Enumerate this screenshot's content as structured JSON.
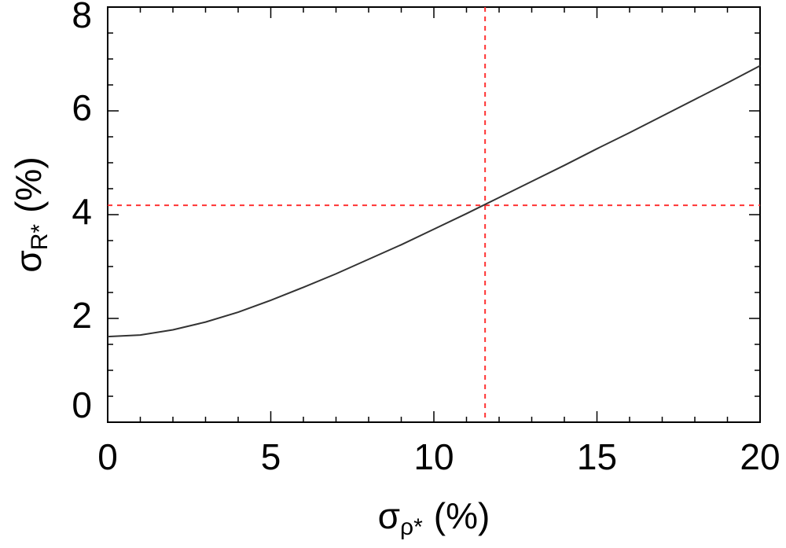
{
  "chart_data": {
    "type": "line",
    "x_label": {
      "symbol": "σ",
      "subscript": "ρ*",
      "unit": "(%)"
    },
    "y_label": {
      "symbol": "σ",
      "subscript": "R*",
      "unit": "(%)"
    },
    "x": [
      0,
      1,
      2,
      3,
      4,
      5,
      6,
      7,
      8,
      9,
      10,
      11,
      12,
      13,
      14,
      15,
      16,
      17,
      18,
      19,
      20
    ],
    "series": [
      {
        "color": "#333333",
        "values": [
          1.65,
          1.68,
          1.78,
          1.93,
          2.12,
          2.35,
          2.6,
          2.86,
          3.14,
          3.42,
          3.72,
          4.02,
          4.33,
          4.64,
          4.95,
          5.27,
          5.58,
          5.9,
          6.22,
          6.54,
          6.87
        ]
      }
    ],
    "reference_lines": {
      "x": 11.57,
      "y": 4.18,
      "color": "#ff3333"
    },
    "xlim": [
      0,
      20
    ],
    "xticks": [
      0,
      5,
      10,
      15,
      20
    ],
    "ylim": [
      0,
      8
    ],
    "yticks": [
      0,
      2,
      4,
      6,
      8
    ]
  }
}
